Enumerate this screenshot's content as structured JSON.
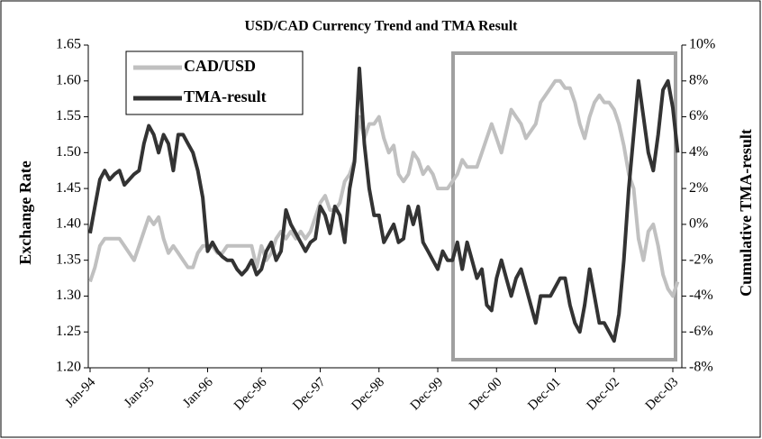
{
  "chart_data": {
    "type": "line",
    "title": "USD/CAD Currency Trend and TMA Result",
    "y_label": "Exchange Rate",
    "y2_label": "Cumulative TMA-result",
    "categories": [
      "Jan-94",
      null,
      null,
      null,
      null,
      null,
      null,
      null,
      null,
      null,
      null,
      null,
      "Jan-95",
      null,
      null,
      null,
      null,
      null,
      null,
      null,
      null,
      null,
      null,
      null,
      "Jan-96",
      null,
      null,
      null,
      null,
      null,
      null,
      null,
      null,
      null,
      null,
      "Dec-96",
      null,
      null,
      null,
      null,
      null,
      null,
      null,
      null,
      null,
      null,
      null,
      "Dec-97",
      null,
      null,
      null,
      null,
      null,
      null,
      null,
      null,
      null,
      null,
      null,
      "Dec-98",
      null,
      null,
      null,
      null,
      null,
      null,
      null,
      null,
      null,
      null,
      null,
      "Dec-99",
      null,
      null,
      null,
      null,
      null,
      null,
      null,
      null,
      null,
      null,
      null,
      "Dec-00",
      null,
      null,
      null,
      null,
      null,
      null,
      null,
      null,
      null,
      null,
      null,
      "Dec-01",
      null,
      null,
      null,
      null,
      null,
      null,
      null,
      null,
      null,
      null,
      null,
      "Dec-02",
      null,
      null,
      null,
      null,
      null,
      null,
      null,
      null,
      null,
      null,
      null,
      "Dec-03",
      null
    ],
    "series": [
      {
        "name": "CAD/USD",
        "color": "#c0c0c0",
        "values": [
          1.32,
          1.34,
          1.37,
          1.38,
          1.38,
          1.38,
          1.38,
          1.37,
          1.36,
          1.35,
          1.37,
          1.39,
          1.41,
          1.4,
          1.41,
          1.38,
          1.36,
          1.37,
          1.36,
          1.35,
          1.34,
          1.34,
          1.36,
          1.37,
          1.37,
          1.37,
          1.36,
          1.36,
          1.37,
          1.37,
          1.37,
          1.37,
          1.37,
          1.37,
          1.34,
          1.37,
          1.35,
          1.36,
          1.38,
          1.39,
          1.38,
          1.39,
          1.38,
          1.39,
          1.38,
          1.39,
          1.41,
          1.43,
          1.44,
          1.42,
          1.42,
          1.43,
          1.46,
          1.47,
          1.49,
          1.55,
          1.52,
          1.54,
          1.54,
          1.55,
          1.52,
          1.5,
          1.51,
          1.47,
          1.46,
          1.47,
          1.5,
          1.49,
          1.47,
          1.48,
          1.47,
          1.45,
          1.45,
          1.45,
          1.46,
          1.47,
          1.49,
          1.48,
          1.48,
          1.48,
          1.5,
          1.52,
          1.54,
          1.52,
          1.5,
          1.53,
          1.56,
          1.55,
          1.54,
          1.52,
          1.53,
          1.54,
          1.57,
          1.58,
          1.59,
          1.6,
          1.6,
          1.59,
          1.59,
          1.57,
          1.54,
          1.52,
          1.55,
          1.57,
          1.58,
          1.57,
          1.57,
          1.56,
          1.54,
          1.51,
          1.47,
          1.45,
          1.38,
          1.35,
          1.39,
          1.4,
          1.37,
          1.33,
          1.31,
          1.3,
          1.32
        ]
      },
      {
        "name": "TMA-result",
        "color": "#333333",
        "axis": "y2",
        "values": [
          -0.5,
          1.0,
          2.5,
          3.0,
          2.5,
          2.8,
          3.0,
          2.2,
          2.5,
          2.8,
          3.0,
          4.5,
          5.5,
          5.0,
          4.0,
          5.0,
          4.5,
          3.0,
          5.0,
          5.0,
          4.5,
          4.0,
          3.0,
          1.5,
          -1.5,
          -1.0,
          -1.5,
          -1.8,
          -2.0,
          -2.0,
          -2.5,
          -2.8,
          -2.5,
          -2.0,
          -2.8,
          -2.5,
          -1.5,
          -1.0,
          -2.0,
          -1.5,
          0.8,
          0.0,
          -0.5,
          -1.0,
          -1.5,
          -1.0,
          -0.8,
          1.0,
          0.5,
          -0.5,
          1.0,
          0.5,
          -1.0,
          2.0,
          3.5,
          8.7,
          4.5,
          2.0,
          0.5,
          0.5,
          -1.0,
          -0.5,
          0.0,
          -1.0,
          -0.8,
          1.0,
          0.0,
          1.0,
          -1.0,
          -1.5,
          -2.0,
          -2.5,
          -1.5,
          -2.0,
          -2.0,
          -1.0,
          -2.5,
          -1.0,
          -2.0,
          -3.0,
          -2.5,
          -4.5,
          -4.8,
          -3.0,
          -2.0,
          -3.0,
          -4.0,
          -3.0,
          -2.5,
          -3.5,
          -4.5,
          -5.5,
          -4.0,
          -4.0,
          -4.0,
          -3.5,
          -3.0,
          -3.0,
          -4.5,
          -5.5,
          -6.0,
          -4.5,
          -2.5,
          -4.0,
          -5.5,
          -5.5,
          -6.0,
          -6.5,
          -5.0,
          -2.0,
          2.0,
          5.0,
          8.0,
          6.0,
          4.0,
          3.0,
          5.0,
          7.5,
          8.0,
          6.5,
          4.0
        ]
      }
    ],
    "ylim": [
      1.2,
      1.65
    ],
    "yticks": [
      {
        "value": 1.2,
        "label": "1.20"
      },
      1.25,
      {
        "value": 1.3,
        "label": "1.30"
      },
      1.35,
      {
        "value": 1.4,
        "label": "1.40"
      },
      1.45,
      {
        "value": 1.5,
        "label": "1.50"
      },
      1.55,
      {
        "value": 1.6,
        "label": "1.60"
      },
      1.65
    ],
    "y2lim": [
      -8,
      10
    ],
    "y2ticks": [
      {
        "value": -8,
        "label": "-8%"
      },
      {
        "value": -6,
        "label": "-6%"
      },
      {
        "value": -4,
        "label": "-4%"
      },
      {
        "value": -2,
        "label": "-2%"
      },
      {
        "value": 0,
        "label": "0%"
      },
      {
        "value": 2,
        "label": "2%"
      },
      {
        "value": 4,
        "label": "4%"
      },
      {
        "value": 6,
        "label": "6%"
      },
      {
        "value": 8,
        "label": "8%"
      },
      {
        "value": 10,
        "label": "10%"
      }
    ],
    "legend": "top-left",
    "grid": false
  }
}
